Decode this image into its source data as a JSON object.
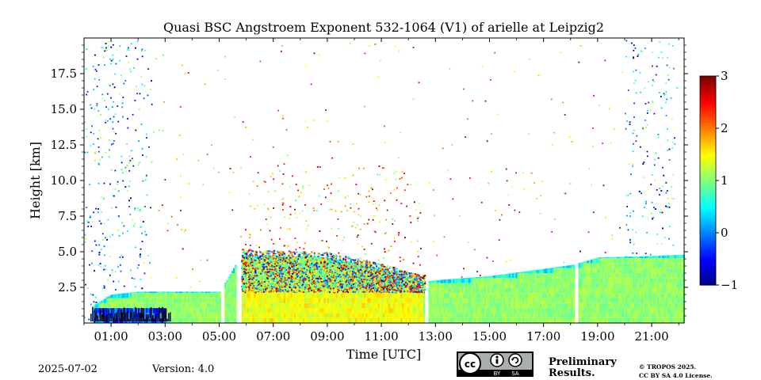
{
  "chart_data": {
    "type": "heatmap",
    "title": "Quasi BSC Angstroem Exponent 532-1064 (V1) of arielle at Leipzig2",
    "xlabel": "Time [UTC]",
    "ylabel": "Height [km]",
    "xlim": [
      0,
      22.2
    ],
    "ylim": [
      0,
      20
    ],
    "x_ticks": [
      "01:00",
      "03:00",
      "05:00",
      "07:00",
      "09:00",
      "11:00",
      "13:00",
      "15:00",
      "17:00",
      "19:00",
      "21:00"
    ],
    "x_tick_values": [
      1,
      3,
      5,
      7,
      9,
      11,
      13,
      15,
      17,
      19,
      21
    ],
    "y_ticks": [
      "2.5",
      "5.0",
      "7.5",
      "10.0",
      "12.5",
      "15.0",
      "17.5"
    ],
    "y_tick_values": [
      2.5,
      5.0,
      7.5,
      10.0,
      12.5,
      15.0,
      17.5
    ],
    "colorbar": {
      "ticks": [
        "3",
        "2",
        "1",
        "0",
        "−1"
      ],
      "tick_values": [
        3,
        2,
        1,
        0,
        -1
      ],
      "range": [
        -1,
        3
      ],
      "colormap": "jet"
    },
    "data_gaps_utc": [
      [
        5.05,
        5.15
      ],
      [
        5.6,
        5.78
      ],
      [
        12.6,
        12.72
      ],
      [
        18.1,
        18.25
      ]
    ],
    "boundary_layer_top_km": [
      [
        0.3,
        1.2
      ],
      [
        1.0,
        2.0
      ],
      [
        2.0,
        2.2
      ],
      [
        3.0,
        2.2
      ],
      [
        5.0,
        2.2
      ],
      [
        5.8,
        4.8
      ],
      [
        9.0,
        4.6
      ],
      [
        11.0,
        3.8
      ],
      [
        12.6,
        2.9
      ],
      [
        13.0,
        3.0
      ],
      [
        15.0,
        3.3
      ],
      [
        17.0,
        3.8
      ],
      [
        18.1,
        4.1
      ],
      [
        19.0,
        4.6
      ],
      [
        21.0,
        4.7
      ],
      [
        22.2,
        4.8
      ]
    ]
  },
  "footer": {
    "date": "2025-07-02",
    "version": "Version: 4.0",
    "license_badge": [
      "BY",
      "SA"
    ],
    "preliminary": [
      "Preliminary",
      "Results."
    ],
    "copyright": [
      "© TROPOS 2025.",
      "CC BY SA 4.0 License."
    ]
  },
  "colors": {
    "preliminary": "#e8302c",
    "badge_bg": "#abafab"
  }
}
